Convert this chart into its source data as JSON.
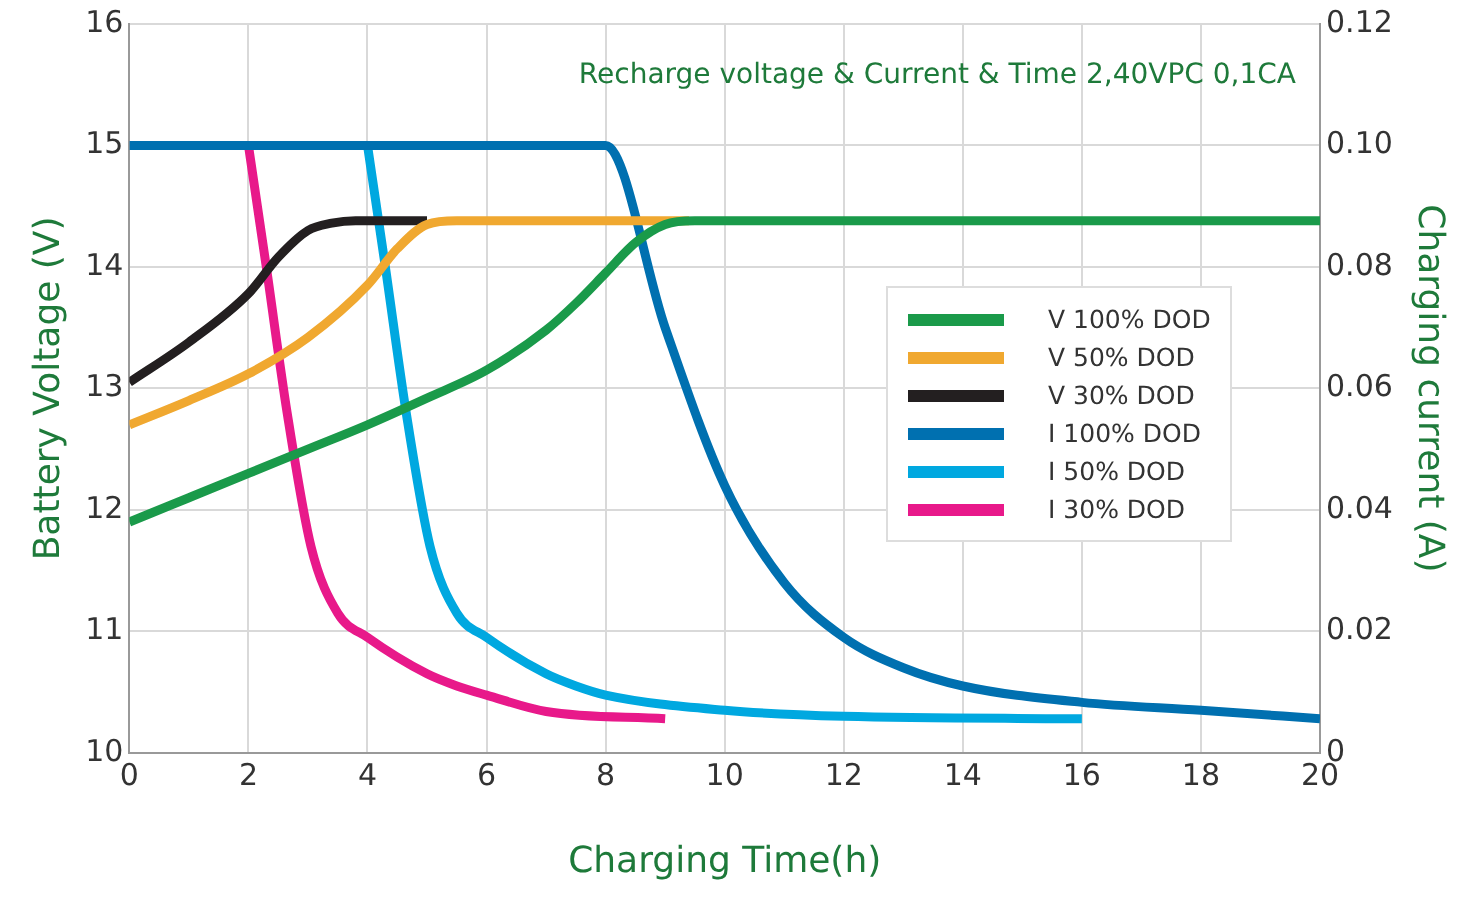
{
  "chart_data": {
    "type": "line",
    "xlabel": "Charging Time(h)",
    "ylabel": "Battery Voltage (V)",
    "y2label": "Charging current (A)",
    "annotations": [
      "Recharge voltage & Current & Time 2,40VPC 0,1CA"
    ],
    "xlim": [
      0,
      20
    ],
    "xticks": [
      0,
      2,
      4,
      6,
      8,
      10,
      12,
      14,
      16,
      18,
      20
    ],
    "ylim": [
      10,
      16
    ],
    "yticks": [
      10,
      11,
      12,
      13,
      14,
      15,
      16
    ],
    "y2lim": [
      0,
      0.12
    ],
    "y2ticks": [
      0,
      0.02,
      0.04,
      0.06,
      0.08,
      {
        "value": 0.1,
        "label": "0.10"
      },
      0.12
    ],
    "grid": true,
    "legend": "right",
    "marker": "none",
    "line_style": "solid",
    "series": [
      {
        "name": "V 100% DOD",
        "color": "#1a9a4a",
        "x": [
          0,
          1,
          2,
          3,
          4,
          5,
          6,
          7,
          7.5,
          8,
          8.5,
          9,
          9.5,
          20
        ],
        "values": [
          11.9,
          12.1,
          12.3,
          12.5,
          12.7,
          12.92,
          13.15,
          13.48,
          13.7,
          13.95,
          14.2,
          14.35,
          14.38,
          14.38
        ]
      },
      {
        "name": "V 50% DOD",
        "color": "#f0a830",
        "x": [
          0,
          1,
          2,
          3,
          4,
          4.5,
          5,
          5.5,
          9.4
        ],
        "values": [
          12.7,
          12.9,
          13.12,
          13.42,
          13.85,
          14.15,
          14.35,
          14.38,
          14.38
        ]
      },
      {
        "name": "V 30% DOD",
        "color": "#231f20",
        "x": [
          0,
          1,
          2,
          2.5,
          3,
          3.4,
          3.8,
          5
        ],
        "values": [
          13.05,
          13.38,
          13.78,
          14.08,
          14.3,
          14.36,
          14.38,
          14.38
        ]
      },
      {
        "name": "I 100% DOD",
        "color": "#0070b0",
        "axis": "y2",
        "x": [
          0,
          8,
          9,
          10,
          11,
          12,
          13,
          14,
          16,
          18,
          20
        ],
        "values": [
          0.1,
          0.1,
          0.07,
          0.044,
          0.028,
          0.019,
          0.014,
          0.011,
          0.0083,
          0.007,
          0.0056
        ]
      },
      {
        "name": "I 50% DOD",
        "color": "#00a8e0",
        "axis": "y2",
        "x": [
          4,
          4.3,
          4.65,
          5.05,
          5.5,
          6,
          7,
          7.5,
          8,
          10,
          12,
          16
        ],
        "values": [
          0.1,
          0.08,
          0.056,
          0.034,
          0.023,
          0.019,
          0.013,
          0.011,
          0.0095,
          0.007,
          0.006,
          0.0056
        ]
      },
      {
        "name": "I 30% DOD",
        "color": "#e8198a",
        "axis": "y2",
        "x": [
          2,
          2.3,
          2.65,
          3.05,
          3.5,
          4,
          5,
          5.5,
          6,
          7,
          9
        ],
        "values": [
          0.1,
          0.08,
          0.056,
          0.034,
          0.023,
          0.019,
          0.013,
          0.011,
          0.0095,
          0.0068,
          0.0056
        ]
      }
    ]
  }
}
